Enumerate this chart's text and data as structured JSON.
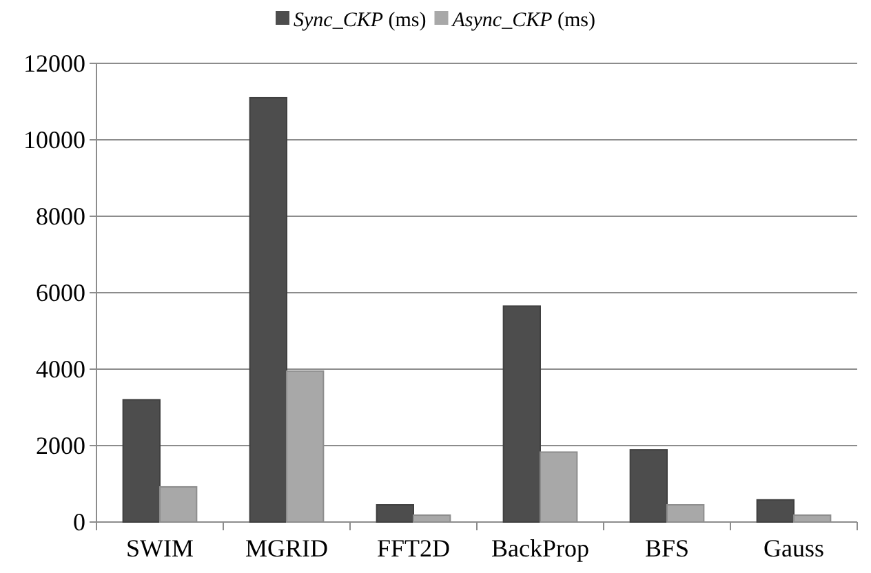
{
  "chart_data": {
    "type": "bar",
    "categories": [
      "SWIM",
      "MGRID",
      "FFT2D",
      "BackProp",
      "BFS",
      "Gauss"
    ],
    "series": [
      {
        "name": "Sync_CKP (ms)",
        "color": "#4d4d4d",
        "values": [
          3200,
          11100,
          450,
          5650,
          1890,
          580
        ]
      },
      {
        "name": "Async_CKP (ms)",
        "color": "#a8a8a8",
        "values": [
          920,
          3950,
          180,
          1830,
          450,
          180
        ]
      }
    ],
    "ylim": [
      0,
      12000
    ],
    "yticks": [
      0,
      2000,
      4000,
      6000,
      8000,
      10000,
      12000
    ],
    "grid": "y",
    "legend": "top"
  }
}
